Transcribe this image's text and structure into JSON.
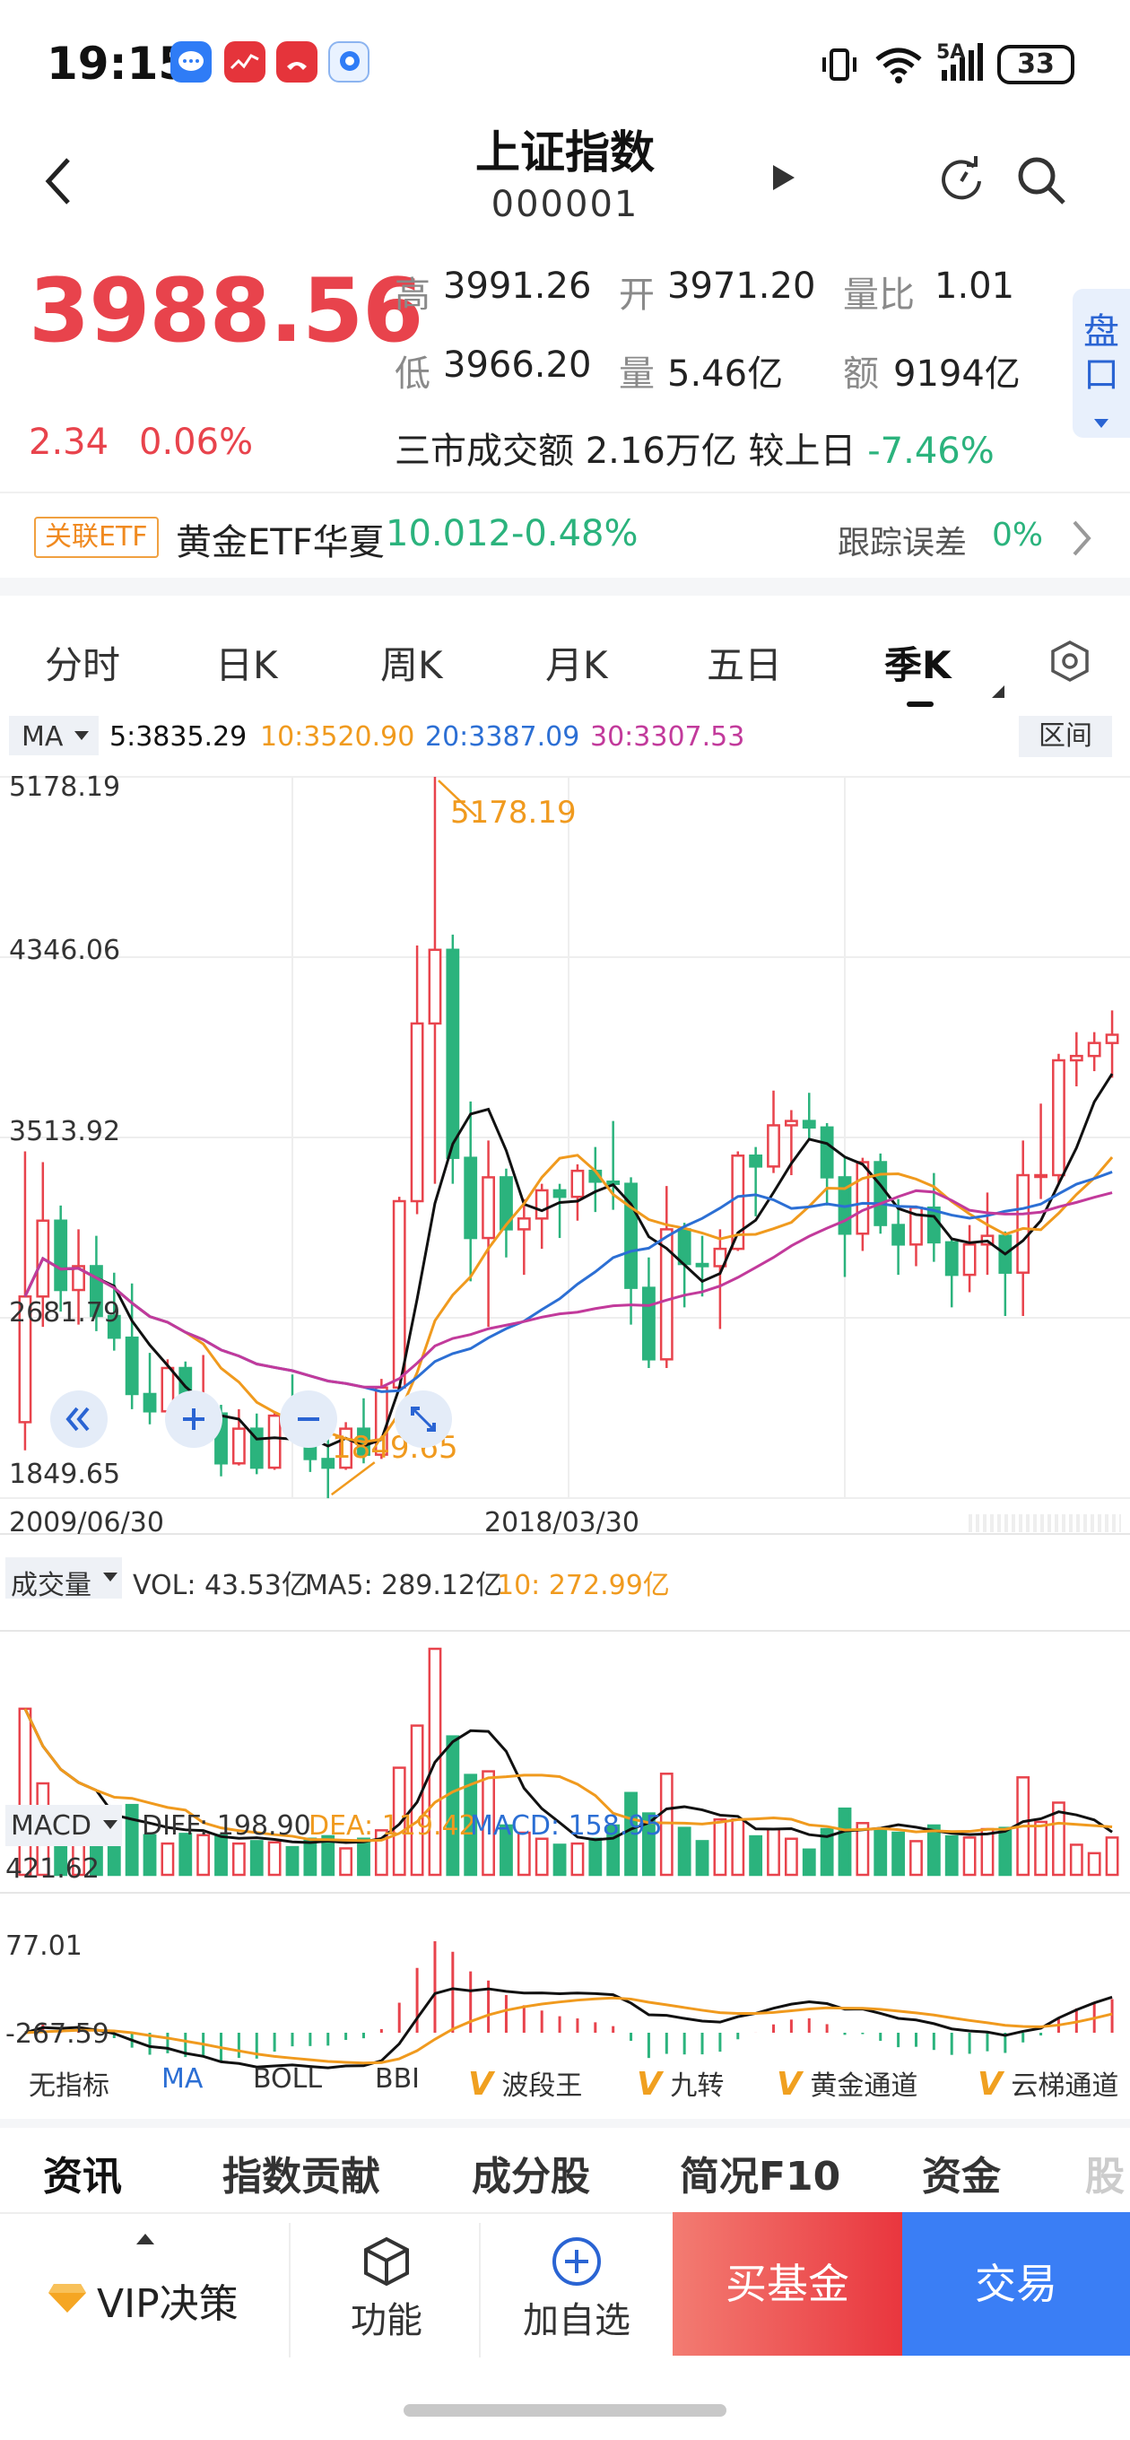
{
  "status_bar": {
    "time": "19:15",
    "battery": "33",
    "network": "5A"
  },
  "header": {
    "title": "上证指数",
    "code": "000001"
  },
  "quote": {
    "price": "3988.56",
    "change": "2.34",
    "change_pct": "0.06%",
    "high_label": "高",
    "high": "3991.26",
    "open_label": "开",
    "open": "3971.20",
    "ratio_label": "量比",
    "ratio": "1.01",
    "low_label": "低",
    "low": "3966.20",
    "vol_label": "量",
    "vol": "5.46亿",
    "amt_label": "额",
    "amt": "9194亿",
    "market_text": "三市成交额 2.16万亿  较上日",
    "market_chg": "-7.46%",
    "pankou": "盘口"
  },
  "etf": {
    "tag": "关联ETF",
    "name": "黄金ETF华夏",
    "price": "10.012",
    "chg": "-0.48%",
    "err_label": "跟踪误差",
    "err": "0%"
  },
  "tabs": [
    "分时",
    "日K",
    "周K",
    "月K",
    "五日",
    "季K"
  ],
  "ma_legend": {
    "label": "MA",
    "ma5": "5:3835.29",
    "ma10": "10:3520.90",
    "ma20": "20:3387.09",
    "ma30": "30:3307.53",
    "range_btn": "区间"
  },
  "colors": {
    "up": "#e8434c",
    "down": "#2bb37d",
    "ma5": "#111111",
    "ma10": "#f09a1e",
    "ma20": "#2c6fd4",
    "ma30": "#c23a9b"
  },
  "price_axis": {
    "top": "5178.19",
    "l2": "4346.06",
    "l3": "3513.92",
    "l4": "2681.79",
    "bottom": "1849.65"
  },
  "annotations": {
    "high": "5178.19",
    "low": "1849.65"
  },
  "dates": {
    "start": "2009/06/30",
    "mid": "2018/03/30"
  },
  "vol_legend": {
    "label": "成交量",
    "vol": "VOL: 43.53亿",
    "ma5": "MA5: 289.12亿",
    "ma10": "10: 272.99亿"
  },
  "macd_legend": {
    "label": "MACD",
    "diff": "DIFF: 198.90",
    "dea": "DEA: 119.42",
    "macd": "MACD: 158.95",
    "top": "421.62",
    "mid": "77.01",
    "bottom": "-267.59"
  },
  "indicators": [
    "无指标",
    "MA",
    "BOLL",
    "BBI",
    "波段王",
    "九转",
    "黄金通道",
    "云梯通道"
  ],
  "info_tabs": [
    "资讯",
    "指数贡献",
    "成分股",
    "简况F10",
    "资金",
    "股"
  ],
  "bottom": {
    "vip": "VIP决策",
    "func": "功能",
    "add": "加自选",
    "buy_fund": "买基金",
    "trade": "交易"
  },
  "chart_data": {
    "type": "candlestick",
    "x_range": [
      "2009/06/30",
      "2025/09/30"
    ],
    "y_range": [
      1849.65,
      5178.19
    ],
    "candles_ohlc": [
      [
        2200,
        3450,
        2070,
        2780
      ],
      [
        2780,
        3400,
        2640,
        3130
      ],
      [
        3130,
        3200,
        2710,
        2810
      ],
      [
        2810,
        3090,
        2650,
        2920
      ],
      [
        2920,
        3060,
        2620,
        2690
      ],
      [
        2690,
        2890,
        2530,
        2590
      ],
      [
        2590,
        2840,
        2260,
        2330
      ],
      [
        2330,
        2520,
        2190,
        2250
      ],
      [
        2250,
        2490,
        2230,
        2450
      ],
      [
        2450,
        2480,
        2140,
        2200
      ],
      [
        2200,
        2510,
        2180,
        2240
      ],
      [
        2240,
        2280,
        1950,
        2010
      ],
      [
        2010,
        2260,
        2000,
        2170
      ],
      [
        2170,
        2240,
        1960,
        1990
      ],
      [
        1990,
        2250,
        1980,
        2230
      ],
      [
        2230,
        2420,
        2190,
        2210
      ],
      [
        2210,
        2270,
        1970,
        2030
      ],
      [
        2030,
        2170,
        1849,
        1990
      ],
      [
        1990,
        2200,
        1980,
        2170
      ],
      [
        2170,
        2310,
        2010,
        2050
      ],
      [
        2050,
        2400,
        2030,
        2360
      ],
      [
        2360,
        3240,
        2350,
        3220
      ],
      [
        3220,
        4400,
        3160,
        4040
      ],
      [
        4040,
        5178,
        3300,
        4380
      ],
      [
        4380,
        4450,
        3300,
        3420
      ],
      [
        3420,
        3680,
        2850,
        3050
      ],
      [
        3050,
        3500,
        2640,
        3330
      ],
      [
        3330,
        3370,
        2960,
        3090
      ],
      [
        3090,
        3230,
        2880,
        3140
      ],
      [
        3140,
        3300,
        3000,
        3270
      ],
      [
        3270,
        3300,
        3050,
        3240
      ],
      [
        3240,
        3390,
        3130,
        3360
      ],
      [
        3360,
        3470,
        3170,
        3310
      ],
      [
        3310,
        3590,
        3180,
        3300
      ],
      [
        3300,
        3330,
        2650,
        2820
      ],
      [
        2820,
        2960,
        2450,
        2490
      ],
      [
        2490,
        3290,
        2450,
        3090
      ],
      [
        3090,
        3120,
        2730,
        2930
      ],
      [
        2930,
        3060,
        2780,
        2920
      ],
      [
        2920,
        3090,
        2630,
        3000
      ],
      [
        3000,
        3450,
        2990,
        3430
      ],
      [
        3430,
        3470,
        3150,
        3380
      ],
      [
        3380,
        3730,
        3350,
        3570
      ],
      [
        3570,
        3640,
        3340,
        3590
      ],
      [
        3590,
        3720,
        3510,
        3560
      ],
      [
        3560,
        3580,
        3200,
        3330
      ],
      [
        3330,
        3420,
        2870,
        3070
      ],
      [
        3070,
        3420,
        2990,
        3400
      ],
      [
        3400,
        3440,
        3070,
        3110
      ],
      [
        3110,
        3230,
        2880,
        3020
      ],
      [
        3020,
        3200,
        2920,
        3190
      ],
      [
        3190,
        3350,
        2940,
        3030
      ],
      [
        3030,
        3050,
        2730,
        2880
      ],
      [
        2880,
        3110,
        2800,
        3020
      ],
      [
        3020,
        3260,
        2880,
        3060
      ],
      [
        3060,
        3080,
        2690,
        2890
      ],
      [
        2890,
        3500,
        2690,
        3340
      ],
      [
        3340,
        3670,
        3230,
        3340
      ],
      [
        3340,
        3900,
        3300,
        3870
      ],
      [
        3870,
        4000,
        3750,
        3890
      ],
      [
        3890,
        4000,
        3820,
        3950
      ],
      [
        3950,
        4100,
        3790,
        3988
      ]
    ]
  }
}
